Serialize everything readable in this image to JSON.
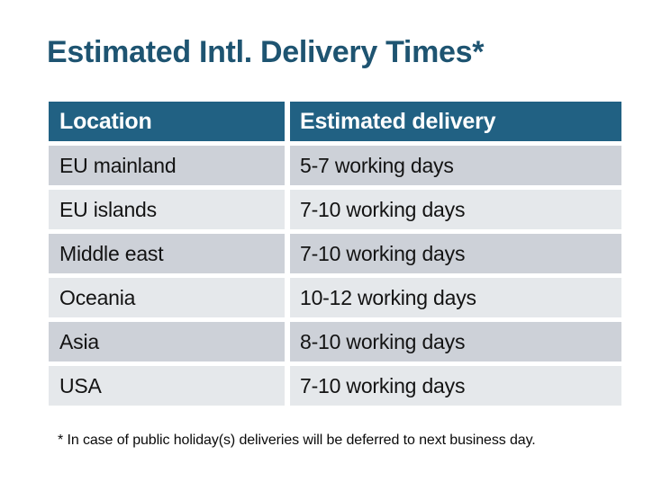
{
  "page": {
    "title": "Estimated Intl. Delivery Times*",
    "footnote": "* In case of public holiday(s) deliveries will be deferred to next business day."
  },
  "table": {
    "headers": {
      "location": "Location",
      "delivery": "Estimated delivery"
    },
    "rows": [
      {
        "location": "EU mainland",
        "delivery": "5-7 working days"
      },
      {
        "location": "EU islands",
        "delivery": "7-10 working days"
      },
      {
        "location": "Middle east",
        "delivery": "7-10 working days"
      },
      {
        "location": "Oceania",
        "delivery": "10-12 working days"
      },
      {
        "location": "Asia",
        "delivery": "8-10 working days"
      },
      {
        "location": "USA",
        "delivery": "7-10 working days"
      }
    ]
  },
  "colors": {
    "header_bg": "#216183",
    "row_dark": "#CDD1D8",
    "row_light": "#E5E8EB",
    "title_text": "#1E5471",
    "header_text": "#FFFFFF",
    "body_text": "#131313",
    "footnote_text": "#0A0A0A",
    "page_bg": "#FFFFFF"
  }
}
